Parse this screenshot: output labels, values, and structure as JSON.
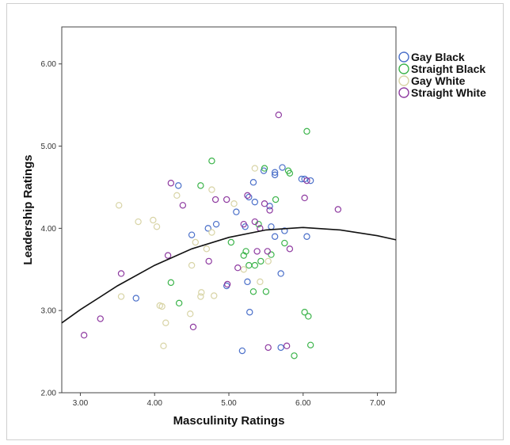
{
  "chart_data": {
    "type": "scatter",
    "xlabel": "Masculinity Ratings",
    "ylabel": "Leadership Ratings",
    "xlim": [
      2.75,
      7.25
    ],
    "ylim": [
      2.0,
      6.45
    ],
    "xticks": [
      "3.00",
      "4.00",
      "5.00",
      "6.00",
      "7.00"
    ],
    "yticks": [
      "2.00",
      "3.00",
      "4.00",
      "5.00",
      "6.00"
    ],
    "xtick_values": [
      3,
      4,
      5,
      6,
      7
    ],
    "ytick_values": [
      2,
      3,
      4,
      5,
      6
    ],
    "grid": false,
    "legend_position": "right",
    "series": [
      {
        "name": "Gay Black",
        "color": "#4a6fc9",
        "points": [
          [
            3.75,
            3.15
          ],
          [
            4.32,
            4.52
          ],
          [
            4.5,
            3.92
          ],
          [
            4.72,
            4.0
          ],
          [
            4.83,
            4.05
          ],
          [
            4.97,
            3.3
          ],
          [
            5.1,
            4.2
          ],
          [
            5.18,
            2.51
          ],
          [
            5.22,
            4.02
          ],
          [
            5.27,
            4.38
          ],
          [
            5.25,
            3.35
          ],
          [
            5.28,
            2.98
          ],
          [
            5.33,
            4.56
          ],
          [
            5.35,
            4.32
          ],
          [
            5.47,
            4.7
          ],
          [
            5.55,
            4.27
          ],
          [
            5.57,
            4.02
          ],
          [
            5.62,
            4.68
          ],
          [
            5.62,
            3.9
          ],
          [
            5.62,
            4.65
          ],
          [
            5.7,
            2.55
          ],
          [
            5.72,
            4.74
          ],
          [
            5.75,
            3.97
          ],
          [
            5.98,
            4.6
          ],
          [
            6.02,
            4.6
          ],
          [
            6.05,
            3.9
          ],
          [
            6.1,
            4.58
          ],
          [
            5.7,
            3.45
          ]
        ]
      },
      {
        "name": "Straight Black",
        "color": "#3cb44b",
        "points": [
          [
            4.22,
            3.34
          ],
          [
            4.33,
            3.09
          ],
          [
            4.62,
            4.52
          ],
          [
            4.77,
            4.82
          ],
          [
            5.03,
            3.83
          ],
          [
            5.2,
            3.67
          ],
          [
            5.23,
            3.72
          ],
          [
            5.27,
            3.55
          ],
          [
            5.33,
            3.23
          ],
          [
            5.35,
            3.55
          ],
          [
            5.4,
            4.05
          ],
          [
            5.43,
            3.6
          ],
          [
            5.48,
            4.73
          ],
          [
            5.5,
            3.23
          ],
          [
            5.57,
            3.68
          ],
          [
            5.63,
            4.35
          ],
          [
            5.75,
            3.82
          ],
          [
            5.8,
            4.7
          ],
          [
            5.82,
            4.67
          ],
          [
            5.88,
            2.45
          ],
          [
            6.02,
            2.98
          ],
          [
            6.05,
            5.18
          ],
          [
            6.07,
            2.93
          ],
          [
            6.1,
            2.58
          ]
        ]
      },
      {
        "name": "Gay White",
        "color": "#d8d4a6",
        "points": [
          [
            3.52,
            4.28
          ],
          [
            3.55,
            3.17
          ],
          [
            3.78,
            4.08
          ],
          [
            3.98,
            4.1
          ],
          [
            4.03,
            4.02
          ],
          [
            4.07,
            3.06
          ],
          [
            4.1,
            3.05
          ],
          [
            4.12,
            2.57
          ],
          [
            4.15,
            2.85
          ],
          [
            4.3,
            4.4
          ],
          [
            4.48,
            2.96
          ],
          [
            4.5,
            3.55
          ],
          [
            4.55,
            3.83
          ],
          [
            4.62,
            3.17
          ],
          [
            4.63,
            3.22
          ],
          [
            4.7,
            3.75
          ],
          [
            4.77,
            4.47
          ],
          [
            4.8,
            3.18
          ],
          [
            4.77,
            3.95
          ],
          [
            5.07,
            4.3
          ],
          [
            5.2,
            3.5
          ],
          [
            5.35,
            4.73
          ],
          [
            5.42,
            3.35
          ],
          [
            5.53,
            3.6
          ]
        ]
      },
      {
        "name": "Straight White",
        "color": "#8e3aa0",
        "points": [
          [
            3.05,
            2.7
          ],
          [
            3.27,
            2.9
          ],
          [
            3.55,
            3.45
          ],
          [
            4.18,
            3.67
          ],
          [
            4.22,
            4.55
          ],
          [
            4.38,
            4.28
          ],
          [
            4.52,
            2.8
          ],
          [
            4.73,
            3.6
          ],
          [
            4.82,
            4.35
          ],
          [
            4.97,
            4.35
          ],
          [
            4.98,
            3.32
          ],
          [
            5.12,
            3.52
          ],
          [
            5.2,
            4.05
          ],
          [
            5.25,
            4.4
          ],
          [
            5.35,
            4.08
          ],
          [
            5.38,
            3.72
          ],
          [
            5.42,
            4.0
          ],
          [
            5.48,
            4.3
          ],
          [
            5.52,
            3.72
          ],
          [
            5.53,
            2.55
          ],
          [
            5.55,
            4.22
          ],
          [
            5.67,
            5.38
          ],
          [
            5.82,
            3.75
          ],
          [
            6.02,
            4.37
          ],
          [
            6.05,
            4.58
          ],
          [
            6.47,
            4.23
          ],
          [
            5.78,
            2.57
          ]
        ]
      }
    ],
    "fit_line": {
      "type": "quadratic",
      "color": "#111111",
      "points": [
        [
          2.75,
          2.85
        ],
        [
          3.0,
          3.01
        ],
        [
          3.5,
          3.3
        ],
        [
          4.0,
          3.55
        ],
        [
          4.5,
          3.75
        ],
        [
          5.0,
          3.89
        ],
        [
          5.5,
          3.98
        ],
        [
          6.0,
          4.01
        ],
        [
          6.5,
          3.98
        ],
        [
          7.0,
          3.91
        ],
        [
          7.25,
          3.86
        ]
      ]
    }
  }
}
